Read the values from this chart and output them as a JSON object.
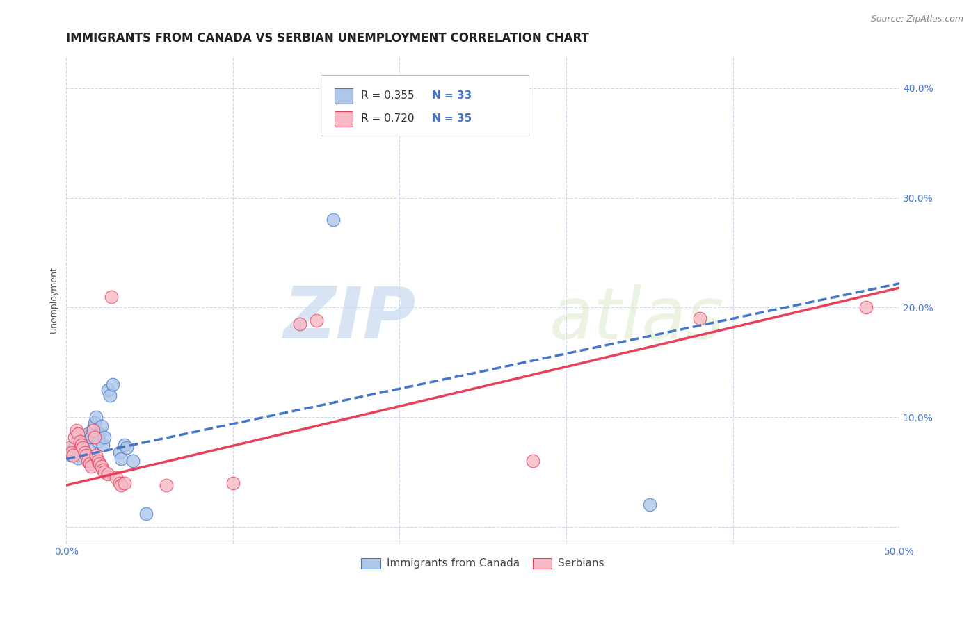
{
  "title": "IMMIGRANTS FROM CANADA VS SERBIAN UNEMPLOYMENT CORRELATION CHART",
  "source": "Source: ZipAtlas.com",
  "ylabel": "Unemployment",
  "xlim": [
    0.0,
    0.5
  ],
  "ylim": [
    -0.015,
    0.43
  ],
  "yticks": [
    0.0,
    0.1,
    0.2,
    0.3,
    0.4
  ],
  "xticks": [
    0.0,
    0.1,
    0.2,
    0.3,
    0.4,
    0.5
  ],
  "xtick_labels": [
    "0.0%",
    "",
    "",
    "",
    "",
    "50.0%"
  ],
  "ytick_labels": [
    "",
    "10.0%",
    "20.0%",
    "30.0%",
    "40.0%"
  ],
  "watermark_zip": "ZIP",
  "watermark_atlas": "atlas",
  "blue_color": "#aec6e8",
  "pink_color": "#f5b8c4",
  "blue_line_color": "#4477cc",
  "pink_line_color": "#e8405a",
  "grid_color": "#d0d8e8",
  "blue_scatter": [
    [
      0.002,
      0.068
    ],
    [
      0.003,
      0.065
    ],
    [
      0.004,
      0.07
    ],
    [
      0.005,
      0.072
    ],
    [
      0.006,
      0.068
    ],
    [
      0.007,
      0.063
    ],
    [
      0.008,
      0.075
    ],
    [
      0.009,
      0.078
    ],
    [
      0.01,
      0.073
    ],
    [
      0.011,
      0.082
    ],
    [
      0.012,
      0.08
    ],
    [
      0.013,
      0.085
    ],
    [
      0.014,
      0.075
    ],
    [
      0.015,
      0.082
    ],
    [
      0.016,
      0.09
    ],
    [
      0.017,
      0.095
    ],
    [
      0.018,
      0.1
    ],
    [
      0.019,
      0.078
    ],
    [
      0.02,
      0.085
    ],
    [
      0.021,
      0.092
    ],
    [
      0.022,
      0.075
    ],
    [
      0.023,
      0.082
    ],
    [
      0.025,
      0.125
    ],
    [
      0.026,
      0.12
    ],
    [
      0.028,
      0.13
    ],
    [
      0.032,
      0.068
    ],
    [
      0.033,
      0.062
    ],
    [
      0.035,
      0.075
    ],
    [
      0.036,
      0.072
    ],
    [
      0.04,
      0.06
    ],
    [
      0.16,
      0.28
    ],
    [
      0.35,
      0.02
    ],
    [
      0.048,
      0.012
    ]
  ],
  "pink_scatter": [
    [
      0.002,
      0.072
    ],
    [
      0.003,
      0.068
    ],
    [
      0.004,
      0.065
    ],
    [
      0.005,
      0.082
    ],
    [
      0.006,
      0.088
    ],
    [
      0.007,
      0.085
    ],
    [
      0.008,
      0.078
    ],
    [
      0.009,
      0.075
    ],
    [
      0.01,
      0.072
    ],
    [
      0.011,
      0.068
    ],
    [
      0.012,
      0.065
    ],
    [
      0.013,
      0.06
    ],
    [
      0.014,
      0.058
    ],
    [
      0.015,
      0.055
    ],
    [
      0.016,
      0.088
    ],
    [
      0.017,
      0.082
    ],
    [
      0.018,
      0.065
    ],
    [
      0.019,
      0.06
    ],
    [
      0.02,
      0.058
    ],
    [
      0.021,
      0.055
    ],
    [
      0.022,
      0.052
    ],
    [
      0.023,
      0.05
    ],
    [
      0.025,
      0.048
    ],
    [
      0.027,
      0.21
    ],
    [
      0.03,
      0.045
    ],
    [
      0.032,
      0.04
    ],
    [
      0.033,
      0.038
    ],
    [
      0.035,
      0.04
    ],
    [
      0.06,
      0.038
    ],
    [
      0.14,
      0.185
    ],
    [
      0.15,
      0.188
    ],
    [
      0.28,
      0.06
    ],
    [
      0.38,
      0.19
    ],
    [
      0.48,
      0.2
    ],
    [
      0.1,
      0.04
    ]
  ],
  "legend_label_blue": "Immigrants from Canada",
  "legend_label_pink": "Serbians",
  "background_color": "#ffffff",
  "title_fontsize": 12,
  "source_fontsize": 9,
  "label_fontsize": 9,
  "tick_fontsize": 10,
  "legend_fontsize": 11,
  "blue_line_intercept": 0.062,
  "blue_line_slope": 0.32,
  "pink_line_intercept": 0.038,
  "pink_line_slope": 0.36
}
